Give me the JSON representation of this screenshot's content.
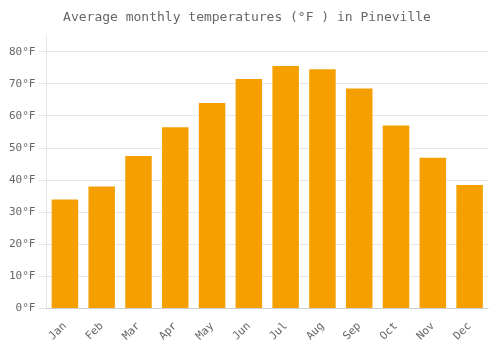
{
  "chart_data": {
    "type": "bar",
    "title": "Average monthly temperatures (°F ) in Pineville",
    "categories": [
      "Jan",
      "Feb",
      "Mar",
      "Apr",
      "May",
      "Jun",
      "Jul",
      "Aug",
      "Sep",
      "Oct",
      "Nov",
      "Dec"
    ],
    "values": [
      34,
      38,
      47.5,
      56.5,
      64,
      71.5,
      75.5,
      74.5,
      68.5,
      57,
      47,
      38.5
    ],
    "color": "#F5A000",
    "ylim": [
      0,
      85
    ],
    "yticks": [
      {
        "value": 0,
        "label": "0°F"
      },
      {
        "value": 10,
        "label": "10°F"
      },
      {
        "value": 20,
        "label": "20°F"
      },
      {
        "value": 30,
        "label": "30°F"
      },
      {
        "value": 40,
        "label": "40°F"
      },
      {
        "value": 50,
        "label": "50°F"
      },
      {
        "value": 60,
        "label": "60°F"
      },
      {
        "value": 70,
        "label": "70°F"
      },
      {
        "value": 80,
        "label": "80°F"
      }
    ],
    "grid": true
  }
}
